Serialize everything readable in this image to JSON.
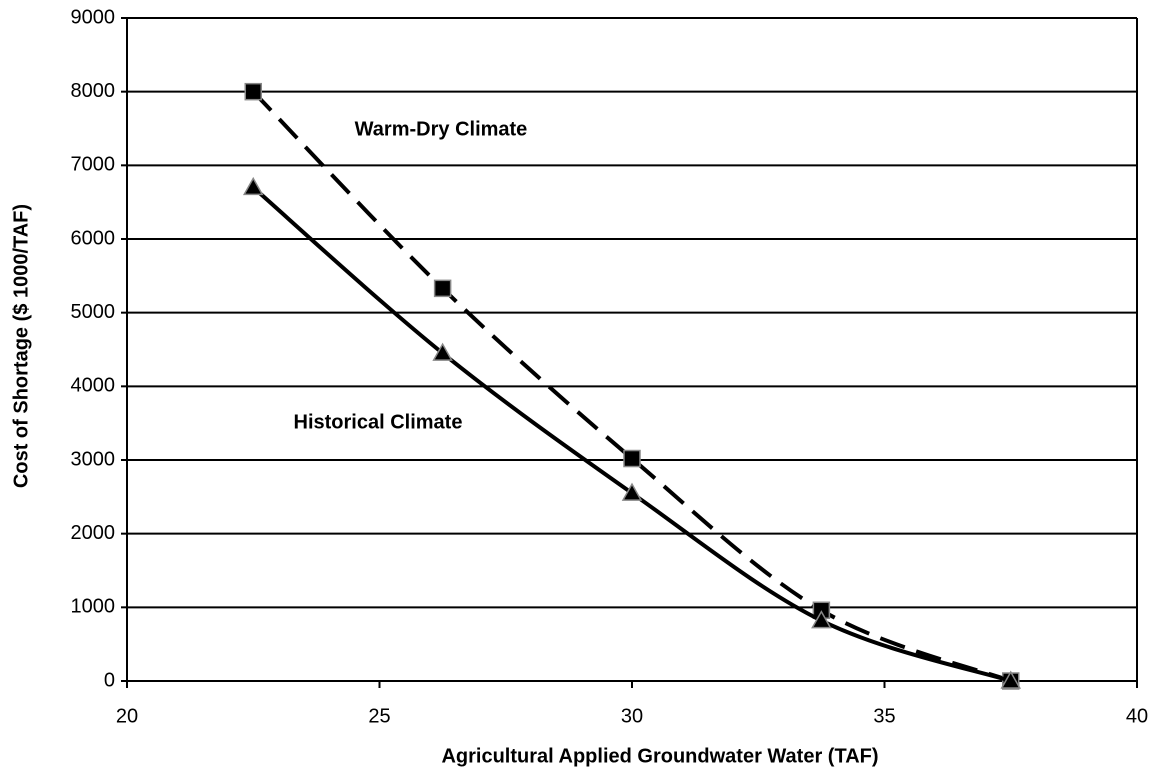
{
  "chart_data": {
    "type": "line",
    "x_label": "Agricultural Applied Groundwater Water (TAF)",
    "y_label": "Cost of Shortage ($ 1000/TAF)",
    "x": [
      22.5,
      26.25,
      30,
      33.75,
      37.5
    ],
    "series": [
      {
        "name": "Warm-Dry Climate",
        "color": "#000000",
        "line_style": "dashed",
        "marker": "square",
        "values": [
          8000,
          5330,
          3020,
          960,
          0
        ]
      },
      {
        "name": "Historical Climate",
        "color": "#000000",
        "line_style": "solid",
        "marker": "triangle",
        "values": [
          6700,
          4450,
          2550,
          820,
          0
        ]
      }
    ],
    "xlim": [
      20,
      40
    ],
    "xticks": [
      20,
      25,
      30,
      35,
      40
    ],
    "ylim": [
      0,
      9000
    ],
    "yticks": [
      0,
      1000,
      2000,
      3000,
      4000,
      5000,
      6000,
      7000,
      8000,
      9000
    ],
    "grid": true
  }
}
